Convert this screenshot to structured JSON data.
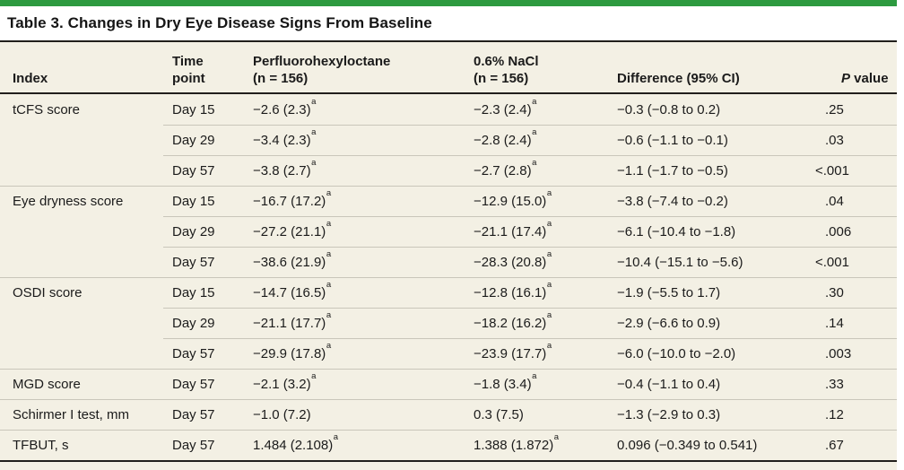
{
  "title": "Table 3. Changes in Dry Eye Disease Signs From Baseline",
  "colors": {
    "accent_green": "#2d9a40",
    "table_bg": "#f3f0e4",
    "rule_dark": "#211f1c",
    "rule_light": "#c9c6ba",
    "text": "#1b1b1b"
  },
  "footnote_marker": "a",
  "columns": [
    {
      "key": "index",
      "label": "Index"
    },
    {
      "key": "time",
      "label": "Time\npoint"
    },
    {
      "key": "drug",
      "label": "Perfluorohexyloctane\n(n = 156)"
    },
    {
      "key": "nacl",
      "label": "0.6% NaCl\n(n = 156)"
    },
    {
      "key": "diff",
      "label": "Difference (95% CI)"
    },
    {
      "key": "p",
      "label": "P value",
      "italic_first": true
    }
  ],
  "rows": [
    {
      "index": "tCFS score",
      "time": "Day 15",
      "drug": "−2.6 (2.3)^a",
      "nacl": "−2.3 (2.4)^a",
      "diff": "−0.3 (−0.8 to 0.2)",
      "p": ".25",
      "group_start": true
    },
    {
      "index": "",
      "time": "Day 29",
      "drug": "−3.4 (2.3)^a",
      "nacl": "−2.8 (2.4)^a",
      "diff": "−0.6 (−1.1 to −0.1)",
      "p": ".03",
      "group_start": false
    },
    {
      "index": "",
      "time": "Day 57",
      "drug": "−3.8 (2.7)^a",
      "nacl": "−2.7 (2.8)^a",
      "diff": "−1.1 (−1.7 to −0.5)",
      "p": "<.001",
      "group_start": false
    },
    {
      "index": "Eye dryness score",
      "time": "Day 15",
      "drug": "−16.7 (17.2)^a",
      "nacl": "−12.9 (15.0)^a",
      "diff": "−3.8 (−7.4 to −0.2)",
      "p": ".04",
      "group_start": true
    },
    {
      "index": "",
      "time": "Day 29",
      "drug": "−27.2 (21.1)^a",
      "nacl": "−21.1 (17.4)^a",
      "diff": "−6.1 (−10.4 to −1.8)",
      "p": ".006",
      "group_start": false
    },
    {
      "index": "",
      "time": "Day 57",
      "drug": "−38.6 (21.9)^a",
      "nacl": "−28.3 (20.8)^a",
      "diff": "−10.4 (−15.1 to −5.6)",
      "p": "<.001",
      "group_start": false
    },
    {
      "index": "OSDI score",
      "time": "Day 15",
      "drug": "−14.7 (16.5)^a",
      "nacl": "−12.8 (16.1)^a",
      "diff": "−1.9 (−5.5 to 1.7)",
      "p": ".30",
      "group_start": true
    },
    {
      "index": "",
      "time": "Day 29",
      "drug": "−21.1 (17.7)^a",
      "nacl": "−18.2 (16.2)^a",
      "diff": "−2.9 (−6.6 to 0.9)",
      "p": ".14",
      "group_start": false
    },
    {
      "index": "",
      "time": "Day 57",
      "drug": "−29.9 (17.8)^a",
      "nacl": "−23.9 (17.7)^a",
      "diff": "−6.0 (−10.0 to −2.0)",
      "p": ".003",
      "group_start": false
    },
    {
      "index": "MGD score",
      "time": "Day 57",
      "drug": "−2.1 (3.2)^a",
      "nacl": "−1.8 (3.4)^a",
      "diff": "−0.4 (−1.1 to 0.4)",
      "p": ".33",
      "group_start": true
    },
    {
      "index": "Schirmer I test, mm",
      "time": "Day 57",
      "drug": "−1.0 (7.2)",
      "nacl": "0.3 (7.5)",
      "diff": "−1.3 (−2.9 to 0.3)",
      "p": ".12",
      "group_start": true
    },
    {
      "index": "TFBUT, s",
      "time": "Day 57",
      "drug": "1.484 (2.108)^a",
      "nacl": "1.388 (1.872)^a",
      "diff": "0.096 (−0.349 to 0.541)",
      "p": ".67",
      "group_start": true
    }
  ]
}
